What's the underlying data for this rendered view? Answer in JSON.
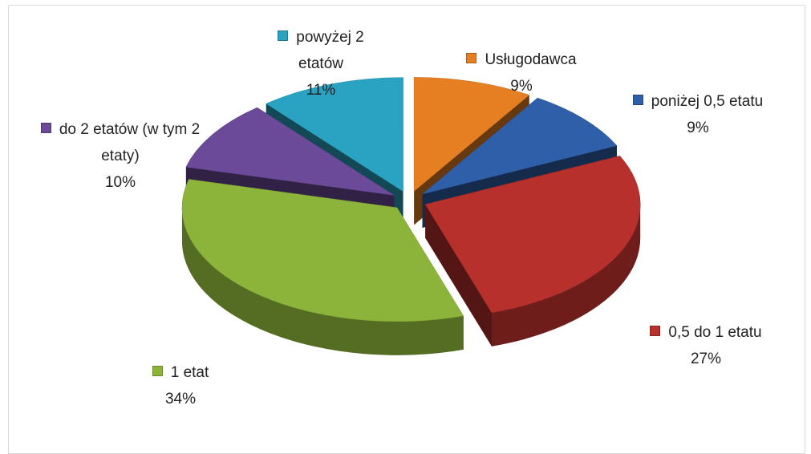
{
  "chart_data": {
    "type": "pie",
    "categories": [
      "Usługodawca",
      "poniżej 0,5 etatu",
      "0,5 do 1 etatu",
      "1 etat",
      "do 2 etatów (w tym 2 etaty)",
      "powyżej 2 etatów"
    ],
    "values": [
      9,
      9,
      27,
      34,
      10,
      11
    ],
    "value_labels": [
      "9%",
      "9%",
      "27%",
      "34%",
      "10%",
      "11%"
    ],
    "colors": [
      "#e67e22",
      "#2f5fa8",
      "#b8302c",
      "#8db43a",
      "#6a4a99",
      "#2aa3c2"
    ]
  }
}
